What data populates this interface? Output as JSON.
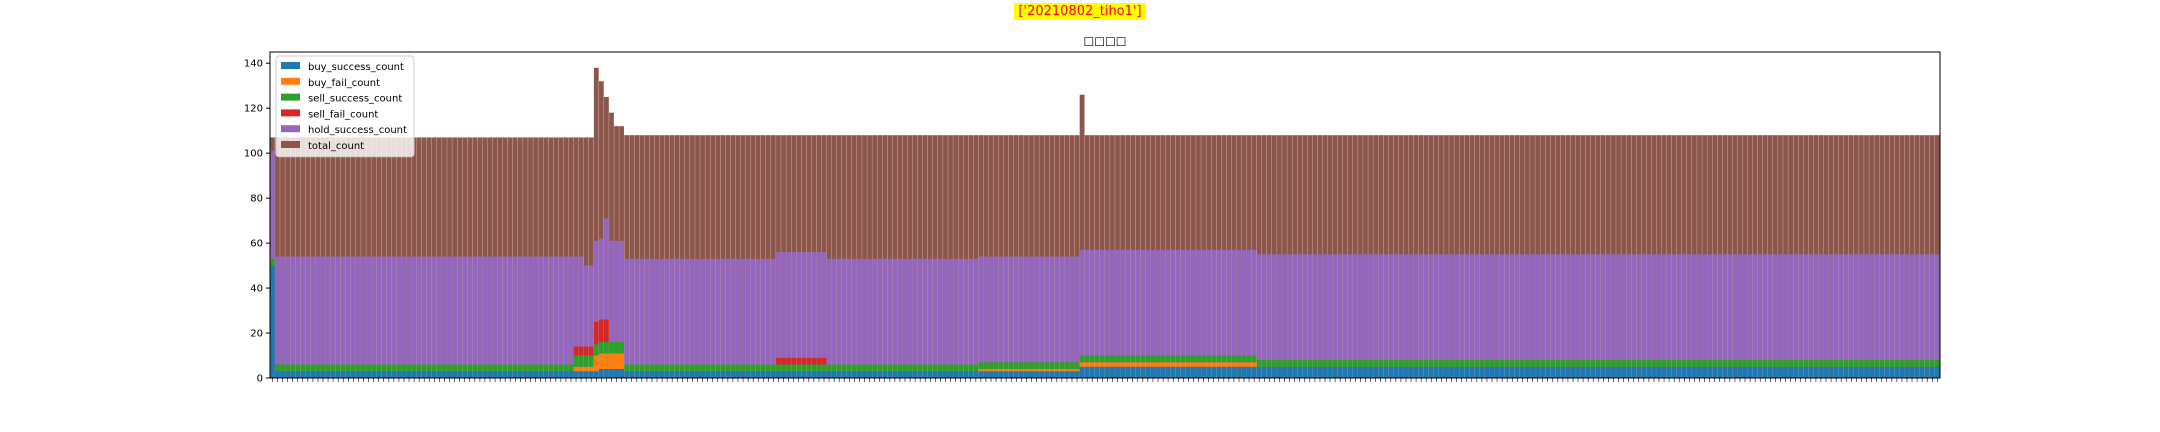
{
  "figure": {
    "suptitle": "['20210802_tiho1']",
    "colors": {
      "highlight_bg": "#ffff00",
      "highlight_text": "#ff0000"
    }
  },
  "chart_data": {
    "type": "bar",
    "stacked": true,
    "title": "☐☐☐☐",
    "xlabel": "",
    "ylabel": "",
    "ylim": [
      0,
      145
    ],
    "yticks": [
      0,
      20,
      40,
      60,
      80,
      100,
      120,
      140
    ],
    "grid": false,
    "legend_position": "top-left",
    "n_bars": 330,
    "notes": "x tick labels are dense time strings and are unreadable; values approximated from the figure",
    "series": [
      {
        "name": "buy_success_count",
        "color": "#1f77b4",
        "segments": [
          {
            "from": 0,
            "to": 1,
            "value": 50
          },
          {
            "from": 1,
            "to": 65,
            "value": 3
          },
          {
            "from": 65,
            "to": 70,
            "value": 4
          },
          {
            "from": 70,
            "to": 160,
            "value": 3
          },
          {
            "from": 160,
            "to": 330,
            "value": 5
          }
        ]
      },
      {
        "name": "buy_fail_count",
        "color": "#ff7f0e",
        "segments": [
          {
            "from": 0,
            "to": 60,
            "value": 0
          },
          {
            "from": 60,
            "to": 64,
            "value": 2
          },
          {
            "from": 64,
            "to": 70,
            "value": 7
          },
          {
            "from": 70,
            "to": 140,
            "value": 0
          },
          {
            "from": 140,
            "to": 160,
            "value": 1
          },
          {
            "from": 160,
            "to": 195,
            "value": 2
          },
          {
            "from": 195,
            "to": 330,
            "value": 0
          }
        ]
      },
      {
        "name": "sell_success_count",
        "color": "#2ca02c",
        "segments": [
          {
            "from": 0,
            "to": 60,
            "value": 3
          },
          {
            "from": 60,
            "to": 70,
            "value": 5
          },
          {
            "from": 70,
            "to": 330,
            "value": 3
          }
        ]
      },
      {
        "name": "sell_fail_count",
        "color": "#d62728",
        "segments": [
          {
            "from": 0,
            "to": 60,
            "value": 0
          },
          {
            "from": 60,
            "to": 64,
            "value": 4
          },
          {
            "from": 64,
            "to": 67,
            "value": 10
          },
          {
            "from": 67,
            "to": 100,
            "value": 0
          },
          {
            "from": 100,
            "to": 110,
            "value": 3
          },
          {
            "from": 110,
            "to": 330,
            "value": 0
          }
        ]
      },
      {
        "name": "hold_success_count",
        "color": "#9467bd",
        "segments": [
          {
            "from": 0,
            "to": 60,
            "value": 48
          },
          {
            "from": 60,
            "to": 62,
            "value": 40
          },
          {
            "from": 62,
            "to": 66,
            "value": 36
          },
          {
            "from": 66,
            "to": 70,
            "value": 45
          },
          {
            "from": 70,
            "to": 330,
            "value": 47
          }
        ]
      },
      {
        "name": "total_count",
        "color": "#8c564b",
        "segments": [
          {
            "from": 0,
            "to": 64,
            "value": 107
          },
          {
            "from": 64,
            "to": 65,
            "value": 138
          },
          {
            "from": 65,
            "to": 66,
            "value": 132
          },
          {
            "from": 66,
            "to": 67,
            "value": 125
          },
          {
            "from": 67,
            "to": 68,
            "value": 118
          },
          {
            "from": 68,
            "to": 70,
            "value": 112
          },
          {
            "from": 70,
            "to": 160,
            "value": 108
          },
          {
            "from": 160,
            "to": 161,
            "value": 126
          },
          {
            "from": 161,
            "to": 330,
            "value": 108
          }
        ]
      }
    ]
  }
}
